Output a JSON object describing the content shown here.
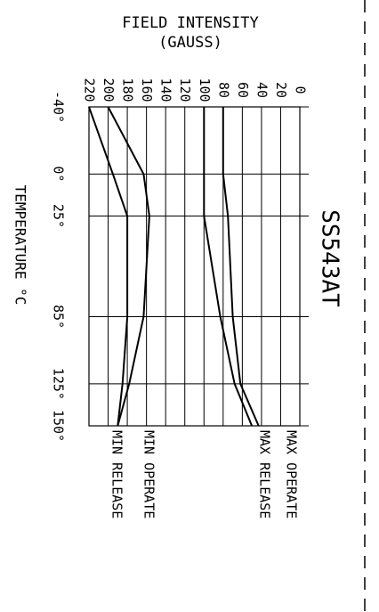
{
  "chart_data": {
    "type": "line",
    "title": "SS543AT",
    "ylabel": "FIELD INTENSITY",
    "ylabel_unit": "(GAUSS)",
    "xlabel": "TEMPERATURE °C",
    "y_ticks": [
      "0",
      "20",
      "40",
      "60",
      "80",
      "100",
      "120",
      "140",
      "160",
      "180",
      "200",
      "220"
    ],
    "x_ticks": [
      "-40°",
      "0°",
      "25°",
      "85°",
      "125°",
      "150°"
    ],
    "x_tick_values": [
      -40,
      0,
      25,
      85,
      125,
      150
    ],
    "ylim": [
      0,
      220
    ],
    "xlim": [
      -40,
      150
    ],
    "grid": true,
    "series": [
      {
        "name": "MAX OPERATE",
        "x": [
          -40,
          0,
          25,
          85,
          125,
          150
        ],
        "values": [
          220,
          195,
          180,
          180,
          185,
          190
        ]
      },
      {
        "name": "MAX RELEASE",
        "x": [
          -40,
          0,
          25,
          85,
          125,
          150
        ],
        "values": [
          200,
          163,
          157,
          163,
          178,
          190
        ]
      },
      {
        "name": "MIN OPERATE",
        "x": [
          -40,
          0,
          25,
          85,
          125,
          150
        ],
        "values": [
          100,
          100,
          100,
          83,
          68,
          50
        ]
      },
      {
        "name": "MIN RELEASE",
        "x": [
          -40,
          0,
          25,
          85,
          125,
          150
        ],
        "values": [
          80,
          80,
          75,
          70,
          62,
          43
        ]
      }
    ],
    "legend_order": [
      "MAX OPERATE",
      "MAX RELEASE",
      "MIN OPERATE",
      "MIN RELEASE"
    ]
  }
}
